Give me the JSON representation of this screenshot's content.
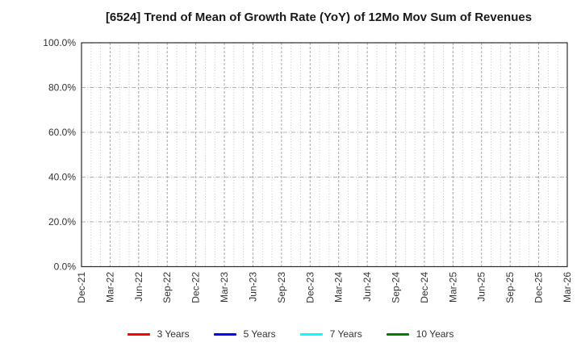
{
  "figure": {
    "background": "#ffffff",
    "frame_color": "#2b2b2b",
    "grid_color": "#b0b0b0",
    "text_color": "#333333"
  },
  "chart_data": {
    "type": "line",
    "title": "[6524]  Trend of Mean of Growth Rate (YoY) of 12Mo Mov Sum of Revenues",
    "xlabel": "",
    "ylabel": "",
    "ylim": [
      0,
      100
    ],
    "yticks": [
      "0.0%",
      "20.0%",
      "40.0%",
      "60.0%",
      "80.0%",
      "100.0%"
    ],
    "xticks": [
      "Dec-21",
      "Mar-22",
      "Jun-22",
      "Sep-22",
      "Dec-22",
      "Mar-23",
      "Jun-23",
      "Sep-23",
      "Dec-23",
      "Mar-24",
      "Jun-24",
      "Sep-24",
      "Dec-24",
      "Mar-25",
      "Jun-25",
      "Sep-25",
      "Dec-25",
      "Mar-26"
    ],
    "months_per_xtick": 3,
    "grid": {
      "show": true,
      "vertical": "monthly dotted",
      "horizontal": "dash-dot every 20%"
    },
    "legend_position": "bottom-center",
    "series": [
      {
        "name": "3 Years",
        "color": "#ff0000",
        "values": []
      },
      {
        "name": "5 Years",
        "color": "#0000ff",
        "values": []
      },
      {
        "name": "7 Years",
        "color": "#00ffff",
        "values": []
      },
      {
        "name": "10 Years",
        "color": "#008000",
        "values": []
      }
    ]
  }
}
